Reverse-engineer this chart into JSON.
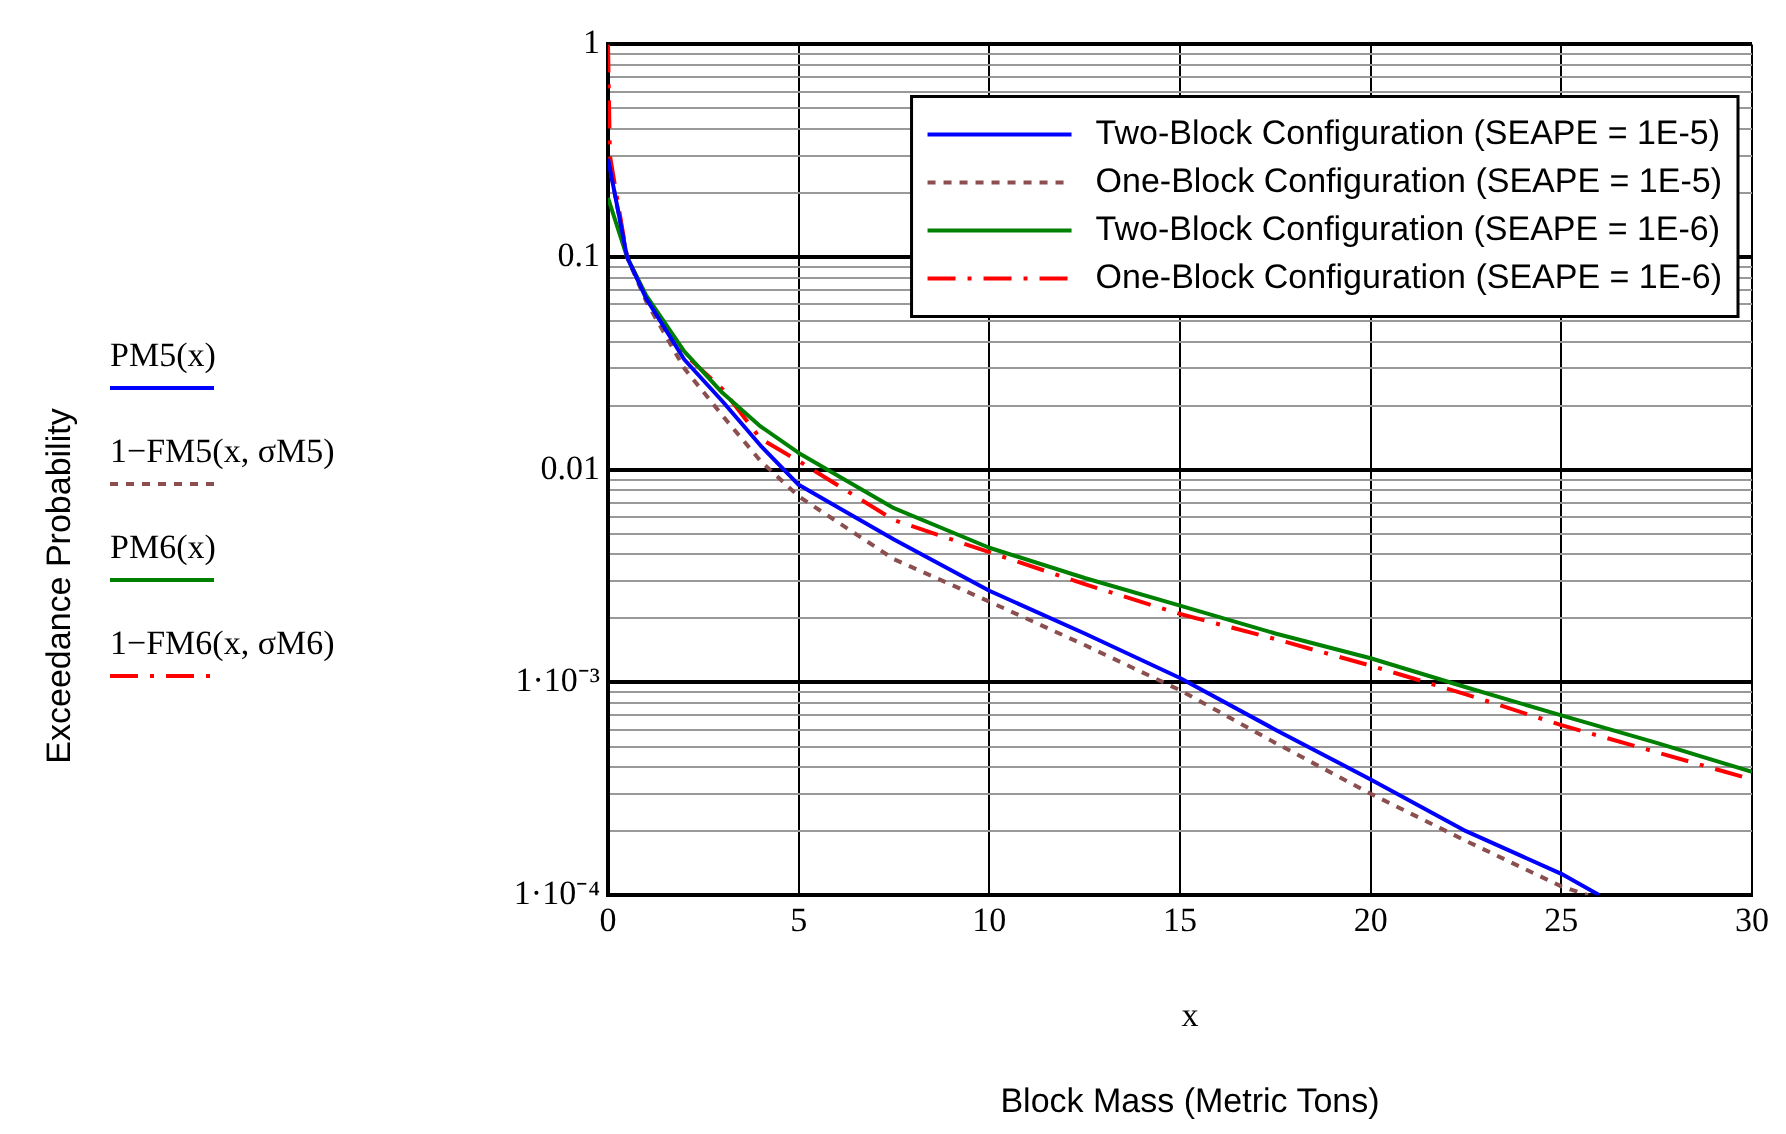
{
  "chart_data": {
    "type": "line",
    "xlabel": "Block Mass (Metric Tons)",
    "log": "y",
    "grid": true,
    "legend": "top right",
    "marker": "none",
    "xlim": [
      0,
      30
    ],
    "xticks": [
      0,
      5,
      10,
      15,
      20,
      25,
      30
    ],
    "ylim": [
      0.0001,
      1
    ],
    "yticks": [
      {
        "value": 0.0001,
        "label": "1·10⁻⁴"
      },
      {
        "value": 0.0002,
        "label": null
      },
      {
        "value": 0.0003,
        "label": null
      },
      {
        "value": 0.0004,
        "label": null
      },
      {
        "value": 0.0005,
        "label": null
      },
      {
        "value": 0.0006,
        "label": null
      },
      {
        "value": 0.0007,
        "label": null
      },
      {
        "value": 0.0008,
        "label": null
      },
      {
        "value": 0.0009,
        "label": null
      },
      {
        "value": 0.001,
        "label": "1·10⁻³"
      },
      {
        "value": 0.002,
        "label": null
      },
      {
        "value": 0.003,
        "label": null
      },
      {
        "value": 0.004,
        "label": null
      },
      {
        "value": 0.005,
        "label": null
      },
      {
        "value": 0.006,
        "label": null
      },
      {
        "value": 0.007,
        "label": null
      },
      {
        "value": 0.008,
        "label": null
      },
      {
        "value": 0.009,
        "label": null
      },
      0.01,
      {
        "value": 0.02,
        "label": null
      },
      {
        "value": 0.03,
        "label": null
      },
      {
        "value": 0.04,
        "label": null
      },
      {
        "value": 0.05,
        "label": null
      },
      {
        "value": 0.06,
        "label": null
      },
      {
        "value": 0.07,
        "label": null
      },
      {
        "value": 0.08,
        "label": null
      },
      {
        "value": 0.09,
        "label": null
      },
      0.1,
      {
        "value": 0.2,
        "label": null
      },
      {
        "value": 0.3,
        "label": null
      },
      {
        "value": 0.4,
        "label": null
      },
      {
        "value": 0.5,
        "label": null
      },
      {
        "value": 0.6,
        "label": null
      },
      {
        "value": 0.7,
        "label": null
      },
      {
        "value": 0.8,
        "label": null
      },
      {
        "value": 0.9,
        "label": null
      },
      1
    ],
    "series": [
      {
        "name": "Two-Block Configuration (SEAPE = 1E-5)",
        "color": "#0000ff",
        "line_style": "solid",
        "x": [
          0,
          0.5,
          1,
          2,
          3,
          4,
          5,
          7.5,
          10,
          12.5,
          15,
          17.5,
          20,
          22.5,
          25,
          26
        ],
        "values": [
          0.29,
          0.1,
          0.064,
          0.033,
          0.021,
          0.013,
          0.0085,
          0.0047,
          0.0027,
          0.0017,
          0.00105,
          0.0006,
          0.00035,
          0.0002,
          0.000126,
          0.0001
        ]
      },
      {
        "name": "One-Block Configuration (SEAPE = 1E-5)",
        "color": "#8b4f4f",
        "line_style": "dotted",
        "x": [
          0,
          0.5,
          1,
          2,
          3,
          4,
          5,
          7.5,
          10,
          12.5,
          15,
          17.5,
          20,
          22.5,
          25,
          25.7
        ],
        "values": [
          0.29,
          0.1,
          0.062,
          0.03,
          0.018,
          0.011,
          0.0075,
          0.0038,
          0.0024,
          0.0015,
          0.00092,
          0.00052,
          0.0003,
          0.00018,
          0.00011,
          0.0001
        ]
      },
      {
        "name": "Two-Block Configuration (SEAPE = 1E-6)",
        "color": "#008000",
        "line_style": "solid",
        "x": [
          0,
          0.5,
          1,
          2,
          3,
          4,
          5,
          7.5,
          10,
          12.5,
          15,
          17.5,
          20,
          22.5,
          25,
          27.5,
          30
        ],
        "values": [
          0.19,
          0.1,
          0.066,
          0.036,
          0.023,
          0.016,
          0.012,
          0.0066,
          0.0043,
          0.0031,
          0.0023,
          0.0017,
          0.0013,
          0.00095,
          0.0007,
          0.00052,
          0.00038
        ]
      },
      {
        "name": "One-Block Configuration (SEAPE = 1E-6)",
        "color": "#ff0000",
        "line_style": "dashed",
        "x": [
          0,
          0.05,
          0.5,
          1,
          2,
          3,
          4,
          5,
          7.5,
          10,
          12.5,
          15,
          17.5,
          20,
          22.5,
          25,
          27.5,
          30
        ],
        "values": [
          1,
          0.3,
          0.1,
          0.065,
          0.035,
          0.024,
          0.014,
          0.011,
          0.0058,
          0.0041,
          0.0029,
          0.0021,
          0.0016,
          0.0012,
          0.00088,
          0.00063,
          0.00047,
          0.00035
        ]
      }
    ],
    "annotations": [
      "PM5(x)",
      "1−FM5(x, σM5)",
      "PM6(x)",
      "1−FM6(x, σM6)",
      "x",
      "Exceedance Probability"
    ]
  }
}
